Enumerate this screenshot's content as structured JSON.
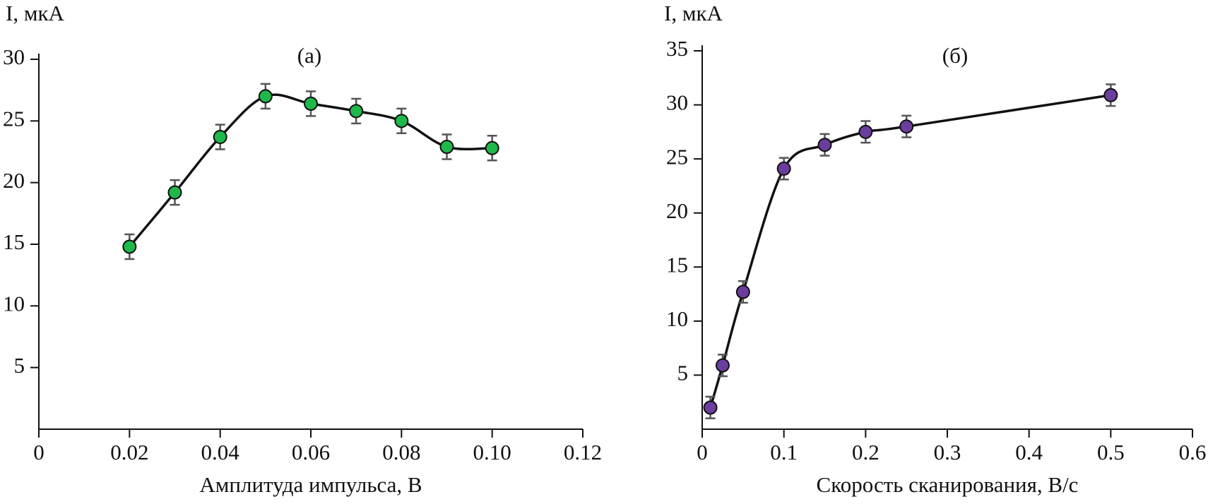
{
  "chart_data": [
    {
      "type": "line",
      "title": "(а)",
      "y_label": "I, мкА",
      "x_label": "Амплитуда импульса, В",
      "x": [
        0.02,
        0.03,
        0.04,
        0.05,
        0.06,
        0.07,
        0.08,
        0.09,
        0.1
      ],
      "values": [
        14.8,
        19.2,
        23.7,
        27.0,
        26.4,
        25.8,
        25.0,
        22.9,
        22.8
      ],
      "errors": [
        1.0,
        1.0,
        1.0,
        1.0,
        1.0,
        1.0,
        1.0,
        1.0,
        1.0
      ],
      "color": "#1fb84a",
      "xlim": [
        0,
        0.12
      ],
      "xticks": [
        0,
        0.02,
        0.04,
        0.06,
        0.08,
        {
          "value": 0.1,
          "label": "0.10"
        },
        0.12
      ],
      "ylim": [
        0,
        30
      ],
      "yticks": [
        5,
        10,
        15,
        20,
        25,
        30
      ]
    },
    {
      "type": "line",
      "title": "(б)",
      "y_label": "I, мкА",
      "x_label": "Скорость сканирования, В/с",
      "x": [
        0.01,
        0.025,
        0.05,
        0.1,
        0.15,
        0.2,
        0.25,
        0.5
      ],
      "values": [
        2.0,
        5.9,
        12.7,
        24.1,
        26.3,
        27.5,
        28.0,
        30.9
      ],
      "errors": [
        1.0,
        1.0,
        1.0,
        1.0,
        1.0,
        1.0,
        1.0,
        1.0
      ],
      "color": "#6a3d9e",
      "xlim": [
        0,
        0.6
      ],
      "xticks": [
        0,
        0.1,
        0.2,
        0.3,
        0.4,
        0.5,
        0.6
      ],
      "ylim": [
        0,
        35
      ],
      "yticks": [
        5,
        10,
        15,
        20,
        25,
        30,
        35
      ]
    }
  ]
}
